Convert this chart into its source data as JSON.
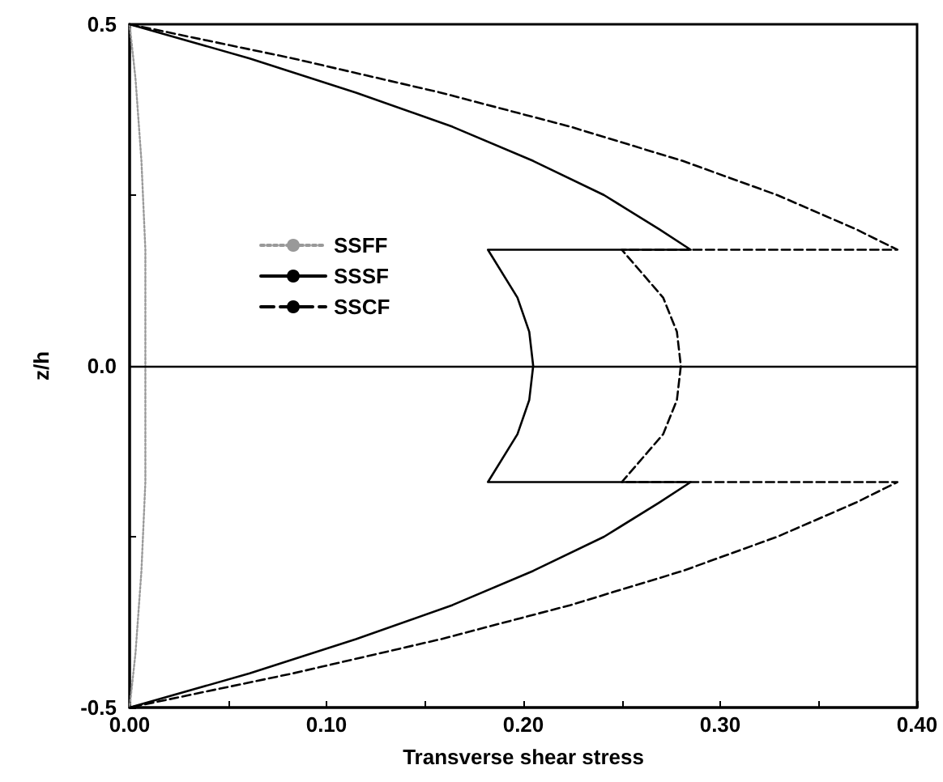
{
  "chart_data": {
    "type": "line",
    "xlabel": "Transverse shear stress",
    "ylabel": "z/h",
    "xlim": [
      0,
      0.4
    ],
    "ylim": [
      -0.5,
      0.5
    ],
    "xticks": [
      {
        "value": 0,
        "label": "0.00"
      },
      {
        "value": 0.05,
        "label": null
      },
      {
        "value": 0.1,
        "label": "0.10"
      },
      {
        "value": 0.15,
        "label": null
      },
      {
        "value": 0.2,
        "label": "0.20"
      },
      {
        "value": 0.25,
        "label": null
      },
      {
        "value": 0.3,
        "label": "0.30"
      },
      {
        "value": 0.35,
        "label": null
      },
      {
        "value": 0.4,
        "label": "0.40"
      }
    ],
    "yticks": [
      {
        "value": -0.5,
        "label": "-0.5"
      },
      {
        "value": -0.25,
        "label": null
      },
      {
        "value": 0,
        "label": "0.0"
      },
      {
        "value": 0.25,
        "label": null
      },
      {
        "value": 0.5,
        "label": "0.5"
      }
    ],
    "grid": false,
    "legend": "top left",
    "marker": "none",
    "ref_lines": [
      {
        "axis": "y",
        "value": 0,
        "color": "#000000",
        "line_style": "solid"
      }
    ],
    "series": [
      {
        "name": "SSFF",
        "color": "#999999",
        "line_style": "dotted",
        "x": [
          0,
          0.003,
          0.006,
          0.008,
          0.008,
          0.008,
          0.006,
          0.003,
          0
        ],
        "values": [
          0.5,
          0.42,
          0.3,
          0.17,
          0,
          -0.17,
          -0.3,
          -0.42,
          -0.5
        ]
      },
      {
        "name": "SSSF",
        "color": "#000000",
        "line_style": "solid",
        "x": [
          0,
          0.061,
          0.115,
          0.164,
          0.205,
          0.241,
          0.269,
          0.285,
          0.182,
          0.197,
          0.203,
          0.205,
          0.203,
          0.197,
          0.182,
          0.285,
          0.269,
          0.241,
          0.205,
          0.164,
          0.115,
          0.061,
          0
        ],
        "values": [
          0.5,
          0.45,
          0.4,
          0.35,
          0.3,
          0.25,
          0.2,
          0.17,
          0.17,
          0.1,
          0.05,
          0,
          -0.05,
          -0.1,
          -0.17,
          -0.17,
          -0.2,
          -0.25,
          -0.3,
          -0.35,
          -0.4,
          -0.45,
          -0.5
        ]
      },
      {
        "name": "SSCF",
        "color": "#000000",
        "line_style": "dashed",
        "x": [
          0,
          0.083,
          0.158,
          0.224,
          0.281,
          0.329,
          0.369,
          0.39,
          0.25,
          0.271,
          0.278,
          0.28,
          0.278,
          0.271,
          0.25,
          0.39,
          0.369,
          0.329,
          0.281,
          0.224,
          0.158,
          0.083,
          0
        ],
        "values": [
          0.5,
          0.45,
          0.4,
          0.35,
          0.3,
          0.25,
          0.2,
          0.17,
          0.17,
          0.1,
          0.05,
          0,
          -0.05,
          -0.1,
          -0.17,
          -0.17,
          -0.2,
          -0.25,
          -0.3,
          -0.35,
          -0.4,
          -0.45,
          -0.5
        ]
      }
    ]
  }
}
